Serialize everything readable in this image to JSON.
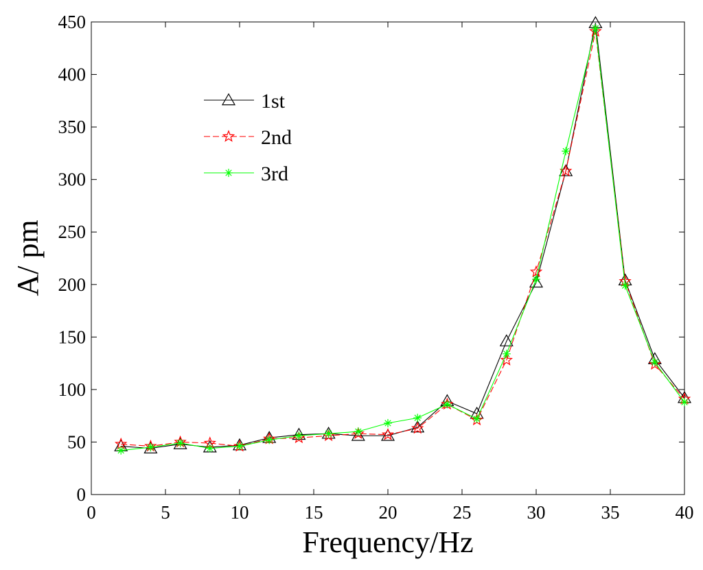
{
  "chart_data": {
    "type": "line",
    "title": "",
    "xlabel": "Frequency/Hz",
    "ylabel": "A/ pm",
    "xlim": [
      0,
      40
    ],
    "ylim": [
      0,
      450
    ],
    "xticks": [
      0,
      5,
      10,
      15,
      20,
      25,
      30,
      35,
      40
    ],
    "yticks": [
      0,
      50,
      100,
      150,
      200,
      250,
      300,
      350,
      400,
      450
    ],
    "grid": false,
    "legend_position": "upper-left",
    "x": [
      2,
      4,
      6,
      8,
      10,
      12,
      14,
      16,
      18,
      20,
      22,
      24,
      26,
      28,
      30,
      32,
      34,
      36,
      38,
      40
    ],
    "series": [
      {
        "name": "1st",
        "color": "#000000",
        "marker": "triangle",
        "line_style": "solid",
        "values": [
          46,
          44,
          48,
          45,
          47,
          54,
          57,
          58,
          56,
          56,
          64,
          89,
          77,
          146,
          202,
          308,
          449,
          204,
          129,
          92
        ]
      },
      {
        "name": "2nd",
        "color": "#ff0000",
        "marker": "star",
        "line_style": "dashed",
        "values": [
          48,
          46,
          50,
          49,
          46,
          53,
          54,
          56,
          58,
          57,
          63,
          86,
          71,
          128,
          212,
          308,
          441,
          203,
          124,
          91
        ]
      },
      {
        "name": "3rd",
        "color": "#00ff00",
        "marker": "asterisk",
        "line_style": "solid",
        "values": [
          42,
          45,
          49,
          44,
          46,
          52,
          56,
          58,
          60,
          68,
          73,
          86,
          72,
          134,
          205,
          327,
          444,
          199,
          126,
          88
        ]
      }
    ]
  }
}
